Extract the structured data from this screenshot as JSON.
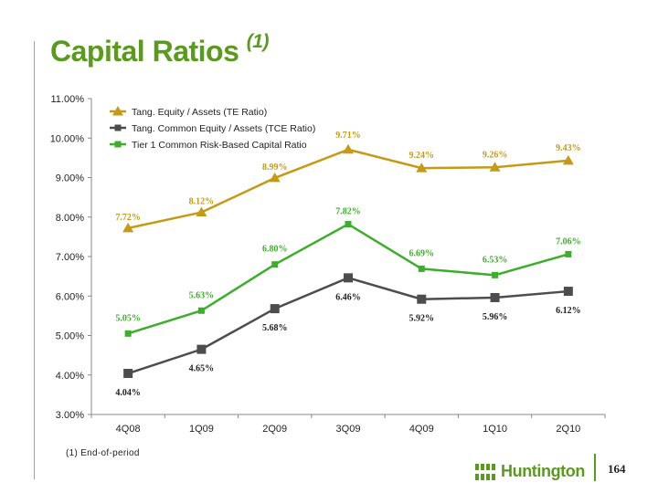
{
  "slide": {
    "title": "Capital Ratios",
    "title_note": "(1)",
    "footnote": "(1)  End-of-period",
    "logo_text": "Huntington",
    "page_number": "164"
  },
  "colors": {
    "title": "#5a9a1e",
    "te": "#c49a17",
    "tce": "#4d4d4d",
    "tier1": "#3dae2b"
  },
  "chart_data": {
    "type": "line",
    "categories": [
      "4Q08",
      "1Q09",
      "2Q09",
      "3Q09",
      "4Q09",
      "1Q10",
      "2Q10"
    ],
    "ylim": [
      3.0,
      11.0
    ],
    "yticks": [
      "3.00%",
      "4.00%",
      "5.00%",
      "6.00%",
      "7.00%",
      "8.00%",
      "9.00%",
      "10.00%",
      "11.00%"
    ],
    "legend_position": "top-left",
    "grid": false,
    "series": [
      {
        "key": "te",
        "name": "Tang. Equity / Assets (TE Ratio)",
        "marker": "triangle",
        "values": [
          7.72,
          8.12,
          8.99,
          9.71,
          9.24,
          9.26,
          9.43
        ],
        "labels": [
          "7.72%",
          "8.12%",
          "8.99%",
          "9.71%",
          "9.24%",
          "9.26%",
          "9.43%"
        ]
      },
      {
        "key": "tce",
        "name": "Tang. Common Equity / Assets (TCE Ratio)",
        "marker": "square",
        "values": [
          4.04,
          4.65,
          5.68,
          6.46,
          5.92,
          5.96,
          6.12
        ],
        "labels": [
          "4.04%",
          "4.65%",
          "5.68%",
          "6.46%",
          "5.92%",
          "5.96%",
          "6.12%"
        ]
      },
      {
        "key": "tier1",
        "name": "Tier 1 Common Risk-Based Capital Ratio",
        "marker": "square-small",
        "values": [
          5.05,
          5.63,
          6.8,
          7.82,
          6.69,
          6.53,
          7.06
        ],
        "labels": [
          "5.05%",
          "5.63%",
          "6.80%",
          "7.82%",
          "6.69%",
          "6.53%",
          "7.06%"
        ]
      }
    ]
  }
}
